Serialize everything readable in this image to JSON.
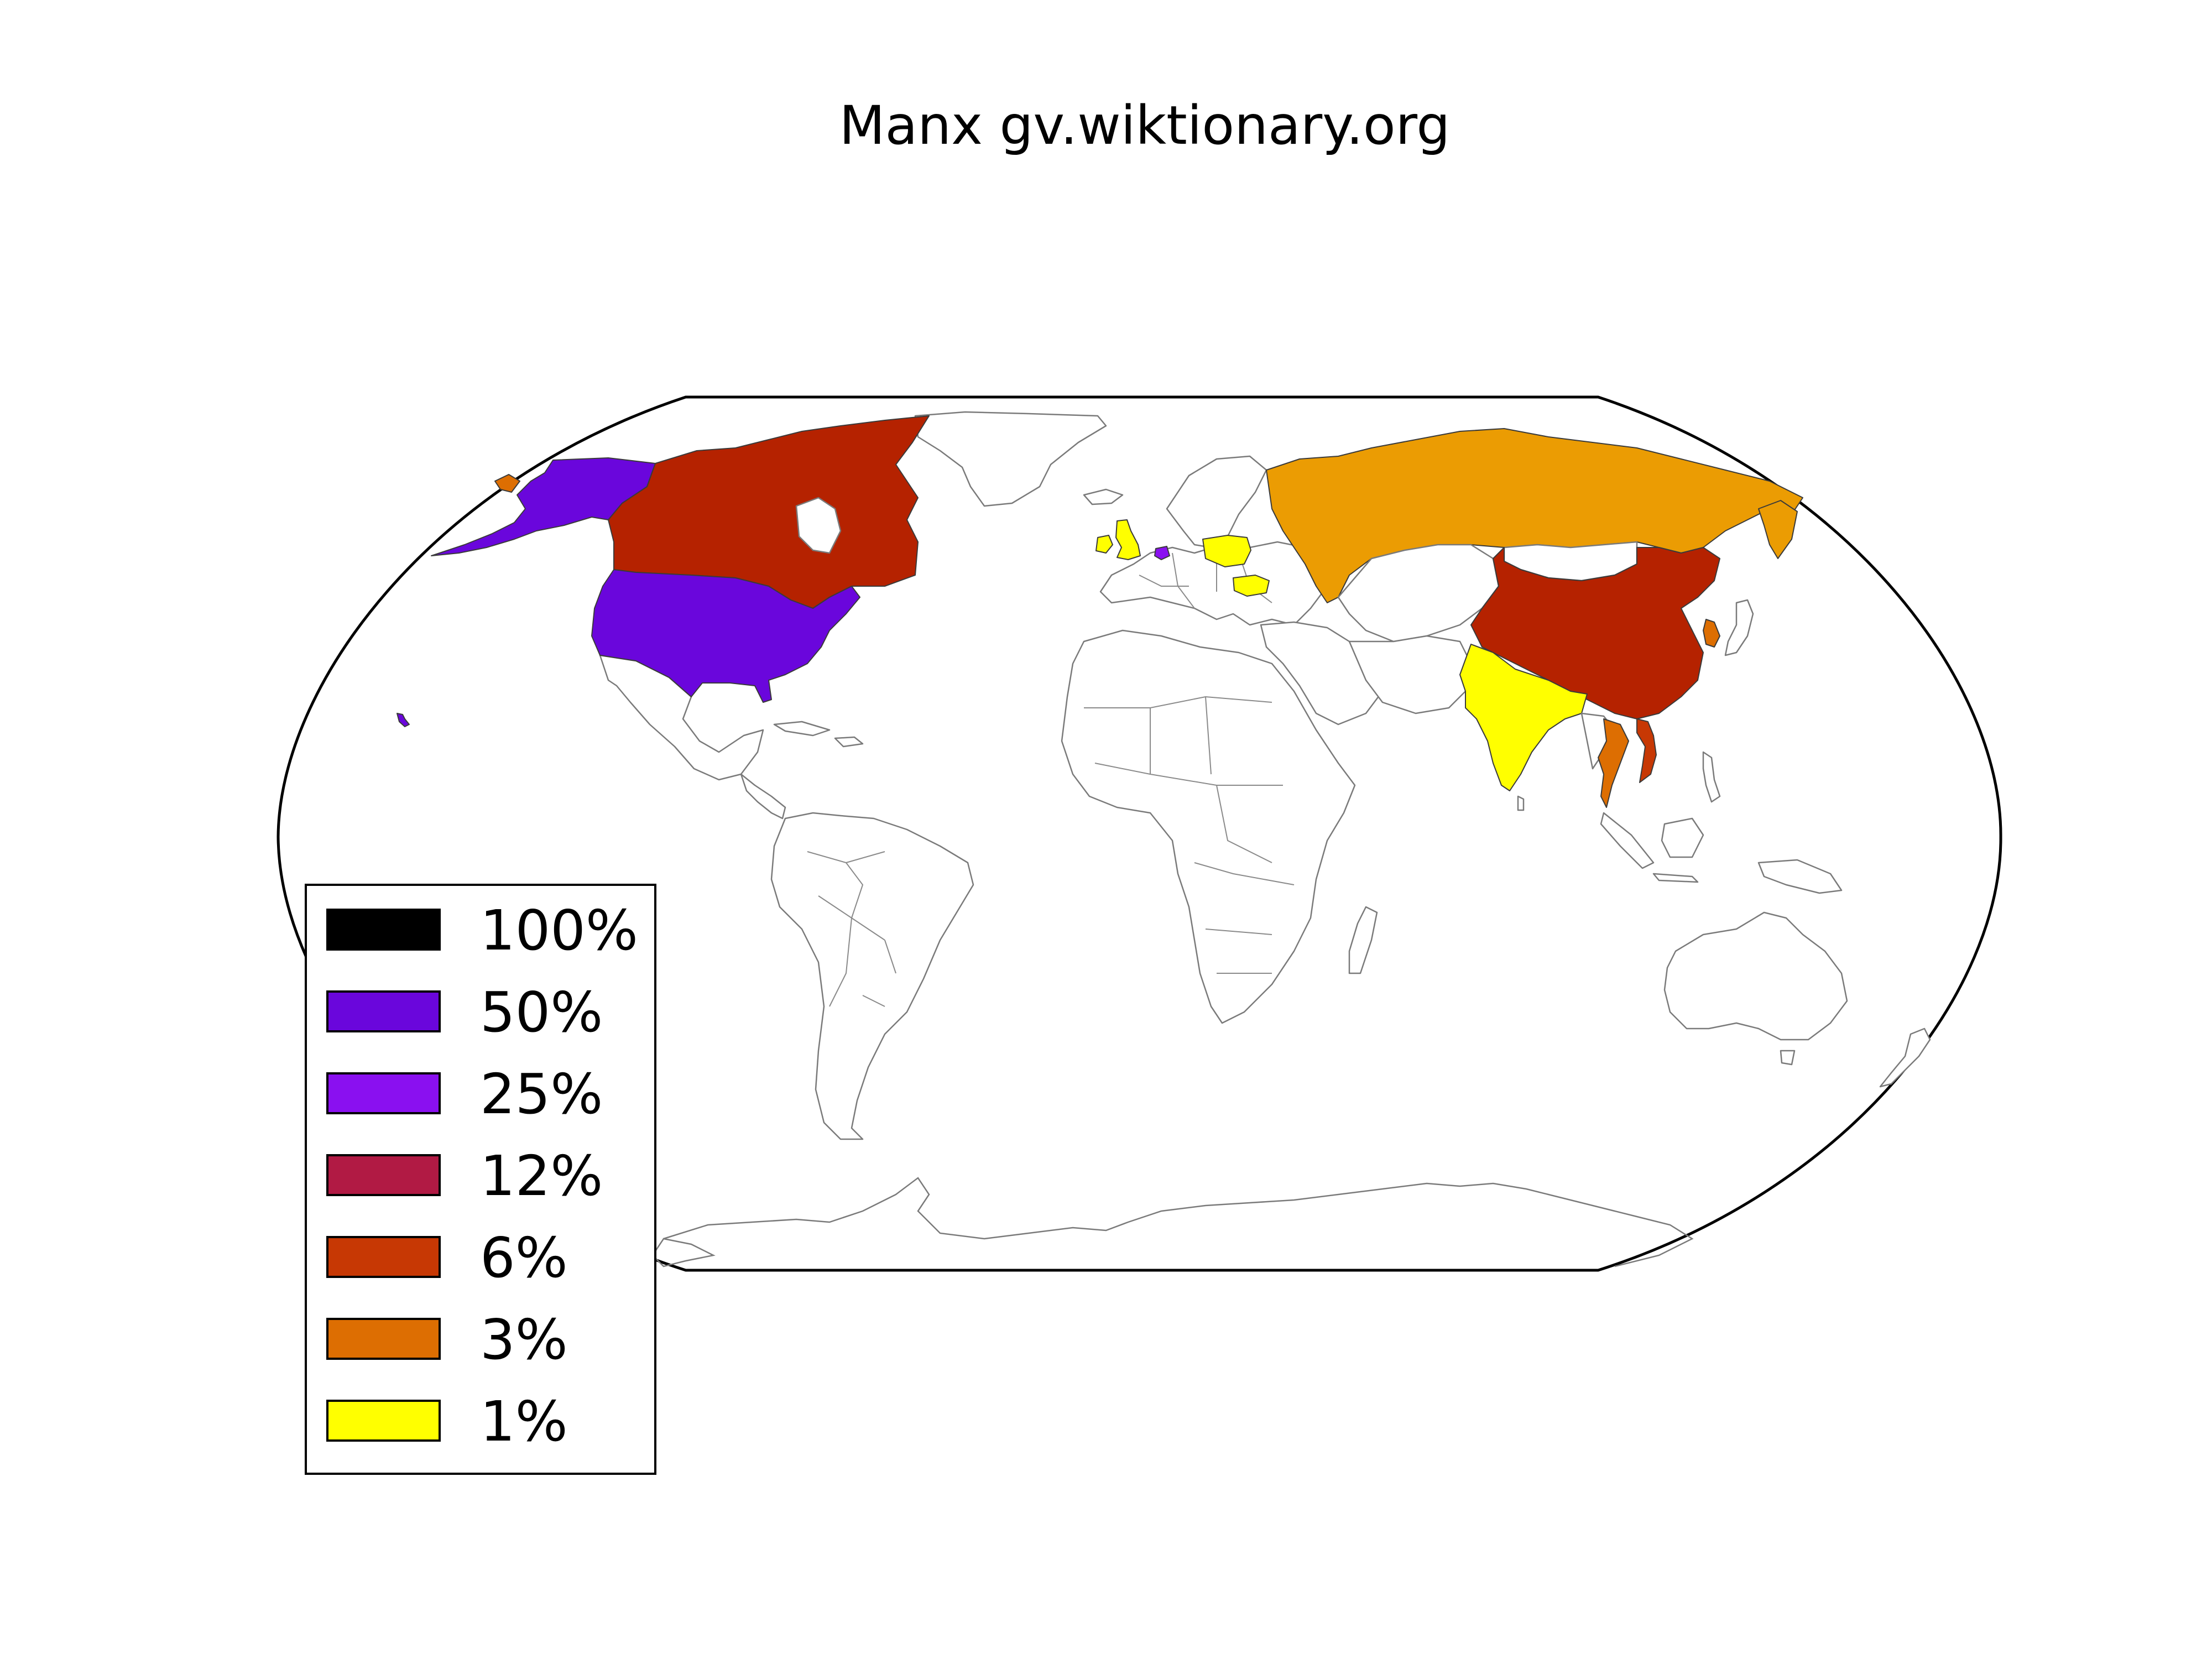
{
  "title": "Manx gv.wiktionary.org",
  "legend": {
    "items": [
      {
        "label": "100%",
        "color": "#000000"
      },
      {
        "label": "50%",
        "color": "#6a06dc"
      },
      {
        "label": "25%",
        "color": "#8a10f0"
      },
      {
        "label": "12%",
        "color": "#b11a44"
      },
      {
        "label": "6%",
        "color": "#c73804"
      },
      {
        "label": "3%",
        "color": "#dd6e02"
      },
      {
        "label": "1%",
        "color": "#ffff00"
      }
    ]
  },
  "regions": [
    {
      "name": "United States",
      "bucket": "50%",
      "color": "#6a06dc"
    },
    {
      "name": "Canada",
      "bucket": "6%",
      "color": "#b52200"
    },
    {
      "name": "China",
      "bucket": "6%",
      "color": "#b52200"
    },
    {
      "name": "Russia",
      "bucket": "3%",
      "color": "#eb9c03"
    },
    {
      "name": "Netherlands",
      "bucket": "25%",
      "color": "#8a10f0"
    },
    {
      "name": "South Korea",
      "bucket": "3%",
      "color": "#dd6e02"
    },
    {
      "name": "Vietnam",
      "bucket": "6%",
      "color": "#c73804"
    },
    {
      "name": "Thailand",
      "bucket": "3%",
      "color": "#dd6e02"
    },
    {
      "name": "United Kingdom",
      "bucket": "1%",
      "color": "#ffff00"
    },
    {
      "name": "Ireland",
      "bucket": "1%",
      "color": "#ffff00"
    },
    {
      "name": "Poland",
      "bucket": "1%",
      "color": "#ffff00"
    },
    {
      "name": "Romania",
      "bucket": "1%",
      "color": "#ffff00"
    },
    {
      "name": "India",
      "bucket": "1%",
      "color": "#ffff00"
    }
  ]
}
